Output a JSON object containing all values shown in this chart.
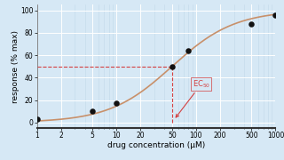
{
  "title": "",
  "xlabel": "drug concentration (μM)",
  "ylabel": "response (% max)",
  "xlim": [
    1,
    1000
  ],
  "ylim": [
    -5,
    105
  ],
  "data_points_x": [
    1,
    5,
    10,
    50,
    80,
    500,
    1000
  ],
  "data_points_y": [
    3,
    10,
    17,
    50,
    64,
    88,
    96
  ],
  "ec50": 50,
  "hill": 1.1,
  "emax": 100,
  "curve_color": "#c8906a",
  "point_color": "#111111",
  "dashed_color": "#d44040",
  "bg_color": "#d6e8f5",
  "grid_major_color": "#ffffff",
  "grid_minor_color": "#c2d8ea",
  "annotation_text": "EC$_{50}$",
  "annotation_fontsize": 6,
  "xlabel_fontsize": 6.5,
  "ylabel_fontsize": 6.5,
  "tick_fontsize": 5.5,
  "point_size": 22
}
